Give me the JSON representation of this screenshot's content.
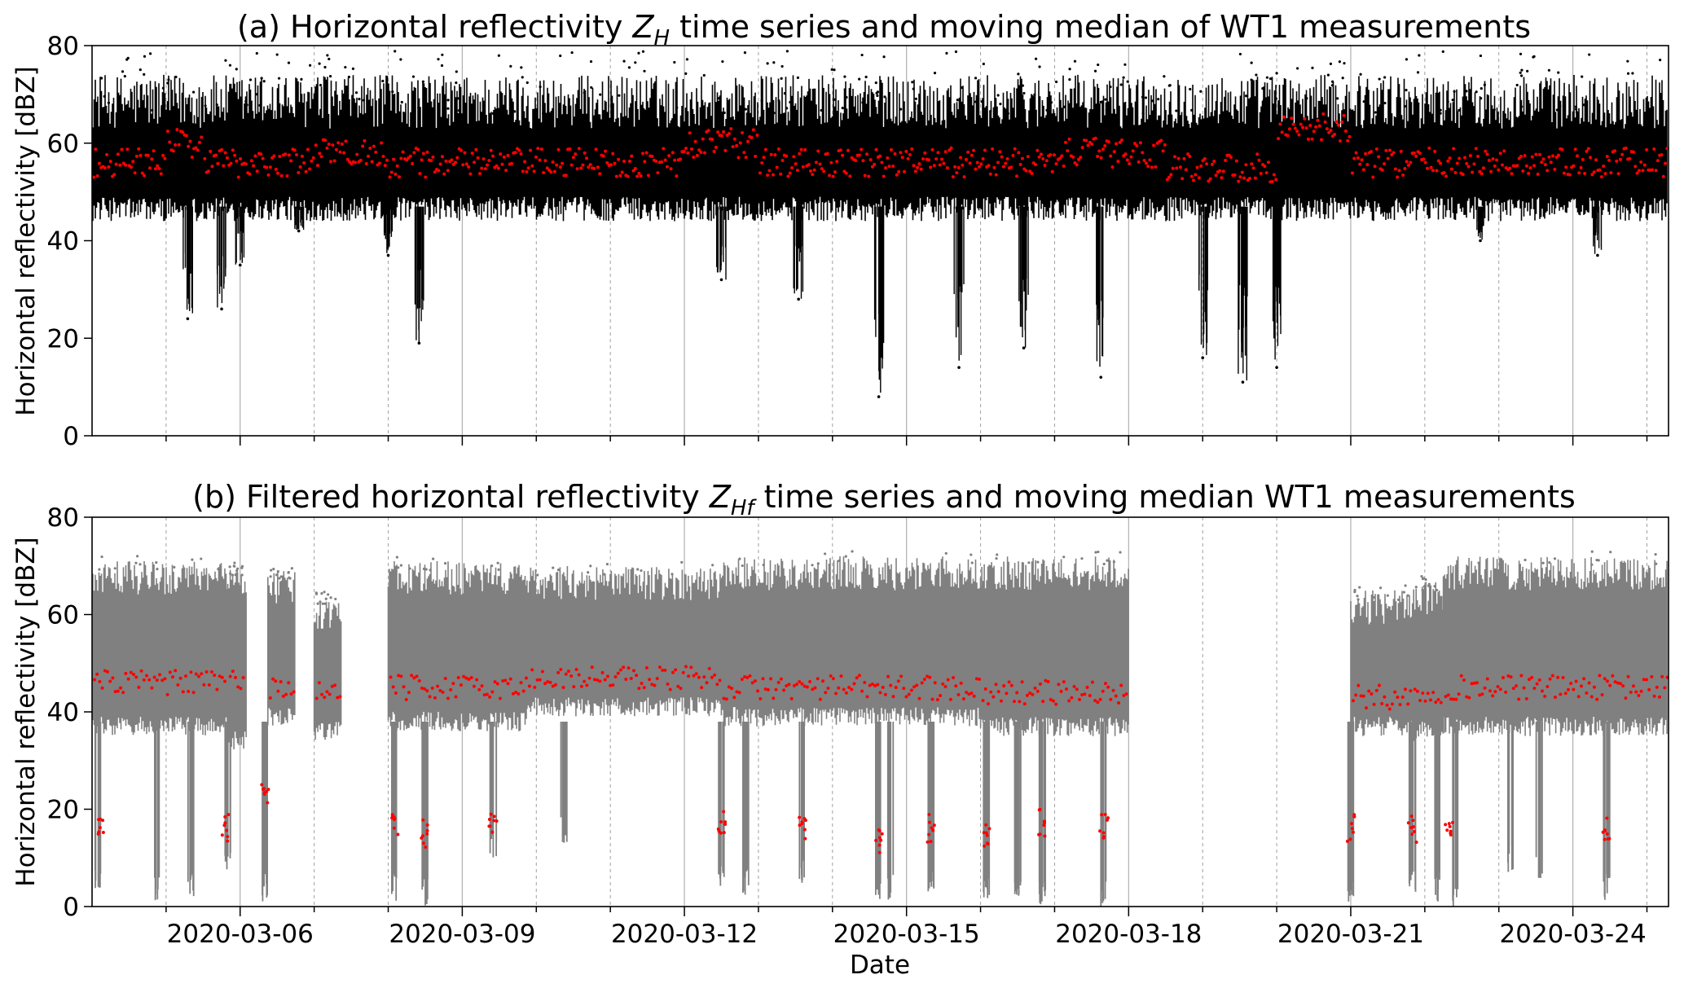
{
  "chart_data": [
    {
      "type": "scatter",
      "title": {
        "before": "(a) Horizontal reflectivity ",
        "symbol": "Z",
        "subscript": "H",
        "after": " time series and moving median of WT1 measurements"
      },
      "ylabel": "Horizontal reflectivity [dBZ]",
      "xlabel": "",
      "ylim": [
        0,
        80
      ],
      "yticks": [
        0,
        20,
        40,
        60,
        80
      ],
      "xlim": [
        "2020-03-04T00:00",
        "2020-03-25T07:00"
      ],
      "grid": "vertical only: solid at 3-day ticks, dashed at each midnight",
      "series": [
        {
          "role": "measurements",
          "color": "#000000",
          "typical_range": [
            47,
            65
          ],
          "drop_events": [
            {
              "x": "2020-03-05T07:00",
              "min": 24
            },
            {
              "x": "2020-03-05T18:00",
              "min": 26
            },
            {
              "x": "2020-03-06T00:00",
              "min": 35
            },
            {
              "x": "2020-03-06T19:00",
              "min": 42
            },
            {
              "x": "2020-03-08T00:00",
              "min": 37
            },
            {
              "x": "2020-03-08T10:00",
              "min": 19
            },
            {
              "x": "2020-03-12T12:00",
              "min": 32
            },
            {
              "x": "2020-03-13T13:00",
              "min": 28
            },
            {
              "x": "2020-03-14T15:00",
              "min": 8
            },
            {
              "x": "2020-03-15T17:00",
              "min": 14
            },
            {
              "x": "2020-03-16T14:00",
              "min": 18
            },
            {
              "x": "2020-03-17T15:00",
              "min": 12
            },
            {
              "x": "2020-03-19T00:00",
              "min": 16
            },
            {
              "x": "2020-03-19T13:00",
              "min": 11
            },
            {
              "x": "2020-03-20T00:00",
              "min": 14
            },
            {
              "x": "2020-03-22T18:00",
              "min": 40
            },
            {
              "x": "2020-03-24T08:00",
              "min": 37
            }
          ]
        },
        {
          "role": "moving median",
          "color": "#ff0000",
          "segments": [
            {
              "x": [
                "2020-03-04T00:00",
                "2020-03-05T00:00"
              ],
              "y": 56
            },
            {
              "x": [
                "2020-03-05T00:00",
                "2020-03-05T12:00"
              ],
              "y": 60
            },
            {
              "x": [
                "2020-03-05T12:00",
                "2020-03-07T00:00"
              ],
              "y": 56
            },
            {
              "x": [
                "2020-03-07T00:00",
                "2020-03-08T00:00"
              ],
              "y": 58
            },
            {
              "x": [
                "2020-03-08T00:00",
                "2020-03-12T00:00"
              ],
              "y": 56
            },
            {
              "x": [
                "2020-03-12T00:00",
                "2020-03-13T00:00"
              ],
              "y": 60
            },
            {
              "x": [
                "2020-03-13T00:00",
                "2020-03-17T00:00"
              ],
              "y": 56
            },
            {
              "x": [
                "2020-03-17T00:00",
                "2020-03-18T12:00"
              ],
              "y": 58
            },
            {
              "x": [
                "2020-03-18T12:00",
                "2020-03-20T00:00"
              ],
              "y": 55
            },
            {
              "x": [
                "2020-03-20T00:00",
                "2020-03-21T00:00"
              ],
              "y": 63
            },
            {
              "x": [
                "2020-03-21T00:00",
                "2020-03-25T07:00"
              ],
              "y": 56
            }
          ]
        }
      ]
    },
    {
      "type": "scatter",
      "title": {
        "before": "(b) Filtered horizontal reflectivity ",
        "symbol": "Z",
        "subscript": "Hf",
        "after": " time series and moving median WT1 measurements"
      },
      "ylabel": "Horizontal reflectivity [dBZ]",
      "xlabel": "Date",
      "ylim": [
        0,
        80
      ],
      "yticks": [
        0,
        20,
        40,
        60,
        80
      ],
      "xlim": [
        "2020-03-04T00:00",
        "2020-03-25T07:00"
      ],
      "xtick_labels": [
        "2020-03-06",
        "2020-03-09",
        "2020-03-12",
        "2020-03-15",
        "2020-03-18",
        "2020-03-21",
        "2020-03-24"
      ],
      "grid": "vertical only: solid at 3-day ticks, dashed at each midnight",
      "series": [
        {
          "role": "filtered measurements",
          "color": "#808080",
          "segments": [
            {
              "x": [
                "2020-03-04T00:00",
                "2020-03-05T20:00"
              ],
              "y_range": [
                36,
                70
              ],
              "median": 46
            },
            {
              "x": [
                "2020-03-05T20:00",
                "2020-03-06T02:00"
              ],
              "y_range": [
                33,
                69
              ],
              "median": 46
            },
            {
              "x": [
                "2020-03-06T09:00",
                "2020-03-06T18:00"
              ],
              "y_range": [
                38,
                68
              ],
              "median": 45
            },
            {
              "x": [
                "2020-03-07T00:00",
                "2020-03-07T09:00"
              ],
              "y_range": [
                35,
                63
              ],
              "median": 44
            },
            {
              "x": [
                "2020-03-08T00:00",
                "2020-03-09T21:00"
              ],
              "y_range": [
                37,
                70
              ],
              "median": 45
            },
            {
              "x": [
                "2020-03-09T21:00",
                "2020-03-12T12:00"
              ],
              "y_range": [
                40,
                69
              ],
              "median": 47
            },
            {
              "x": [
                "2020-03-12T12:00",
                "2020-03-16T00:00"
              ],
              "y_range": [
                38,
                71
              ],
              "median": 45
            },
            {
              "x": [
                "2020-03-16T00:00",
                "2020-03-18T00:00"
              ],
              "y_range": [
                36,
                71
              ],
              "median": 44
            },
            {
              "x": [
                "2020-03-21T00:00",
                "2020-03-21T20:00"
              ],
              "y_range": [
                36,
                64
              ],
              "median": 43
            },
            {
              "x": [
                "2020-03-21T20:00",
                "2020-03-22T06:00"
              ],
              "y_range": [
                35,
                66
              ],
              "median": 44
            },
            {
              "x": [
                "2020-03-22T06:00",
                "2020-03-25T07:00"
              ],
              "y_range": [
                36,
                71
              ],
              "median": 45
            }
          ],
          "drop_events": [
            {
              "x": "2020-03-04T02:00",
              "min": 3
            },
            {
              "x": "2020-03-04T21:00",
              "min": 0
            },
            {
              "x": "2020-03-05T08:00",
              "min": 2
            },
            {
              "x": "2020-03-05T20:00",
              "min": 7
            },
            {
              "x": "2020-03-06T08:00",
              "min": 1
            },
            {
              "x": "2020-03-08T02:00",
              "min": 1
            },
            {
              "x": "2020-03-08T12:00",
              "min": 0
            },
            {
              "x": "2020-03-09T10:00",
              "min": 10
            },
            {
              "x": "2020-03-10T09:00",
              "min": 13
            },
            {
              "x": "2020-03-12T12:00",
              "min": 3
            },
            {
              "x": "2020-03-12T20:00",
              "min": 2
            },
            {
              "x": "2020-03-13T14:00",
              "min": 4
            },
            {
              "x": "2020-03-14T15:00",
              "min": 0
            },
            {
              "x": "2020-03-14T19:00",
              "min": 1
            },
            {
              "x": "2020-03-15T08:00",
              "min": 3
            },
            {
              "x": "2020-03-16T02:00",
              "min": 0
            },
            {
              "x": "2020-03-16T12:00",
              "min": 1
            },
            {
              "x": "2020-03-16T20:00",
              "min": 0
            },
            {
              "x": "2020-03-17T16:00",
              "min": 0
            },
            {
              "x": "2020-03-21T00:00",
              "min": 1
            },
            {
              "x": "2020-03-21T20:00",
              "min": 2
            },
            {
              "x": "2020-03-22T04:00",
              "min": 1
            },
            {
              "x": "2020-03-22T10:00",
              "min": 0
            },
            {
              "x": "2020-03-23T04:00",
              "min": 7
            },
            {
              "x": "2020-03-23T13:00",
              "min": 5
            },
            {
              "x": "2020-03-24T11:00",
              "min": 1
            }
          ]
        },
        {
          "role": "moving median",
          "color": "#ff0000",
          "low_clusters": [
            {
              "x": "2020-03-04T03:00",
              "y": 16
            },
            {
              "x": "2020-03-05T19:00",
              "y": 16
            },
            {
              "x": "2020-03-06T08:00",
              "y": 24
            },
            {
              "x": "2020-03-08T02:00",
              "y": 16
            },
            {
              "x": "2020-03-08T12:00",
              "y": 15
            },
            {
              "x": "2020-03-09T10:00",
              "y": 18
            },
            {
              "x": "2020-03-12T12:00",
              "y": 17
            },
            {
              "x": "2020-03-13T14:00",
              "y": 16
            },
            {
              "x": "2020-03-14T15:00",
              "y": 13
            },
            {
              "x": "2020-03-15T08:00",
              "y": 16
            },
            {
              "x": "2020-03-16T02:00",
              "y": 15
            },
            {
              "x": "2020-03-16T20:00",
              "y": 17
            },
            {
              "x": "2020-03-17T16:00",
              "y": 16
            },
            {
              "x": "2020-03-21T00:00",
              "y": 16
            },
            {
              "x": "2020-03-21T20:00",
              "y": 16
            },
            {
              "x": "2020-03-22T08:00",
              "y": 16
            },
            {
              "x": "2020-03-24T11:00",
              "y": 16
            }
          ]
        }
      ]
    }
  ]
}
